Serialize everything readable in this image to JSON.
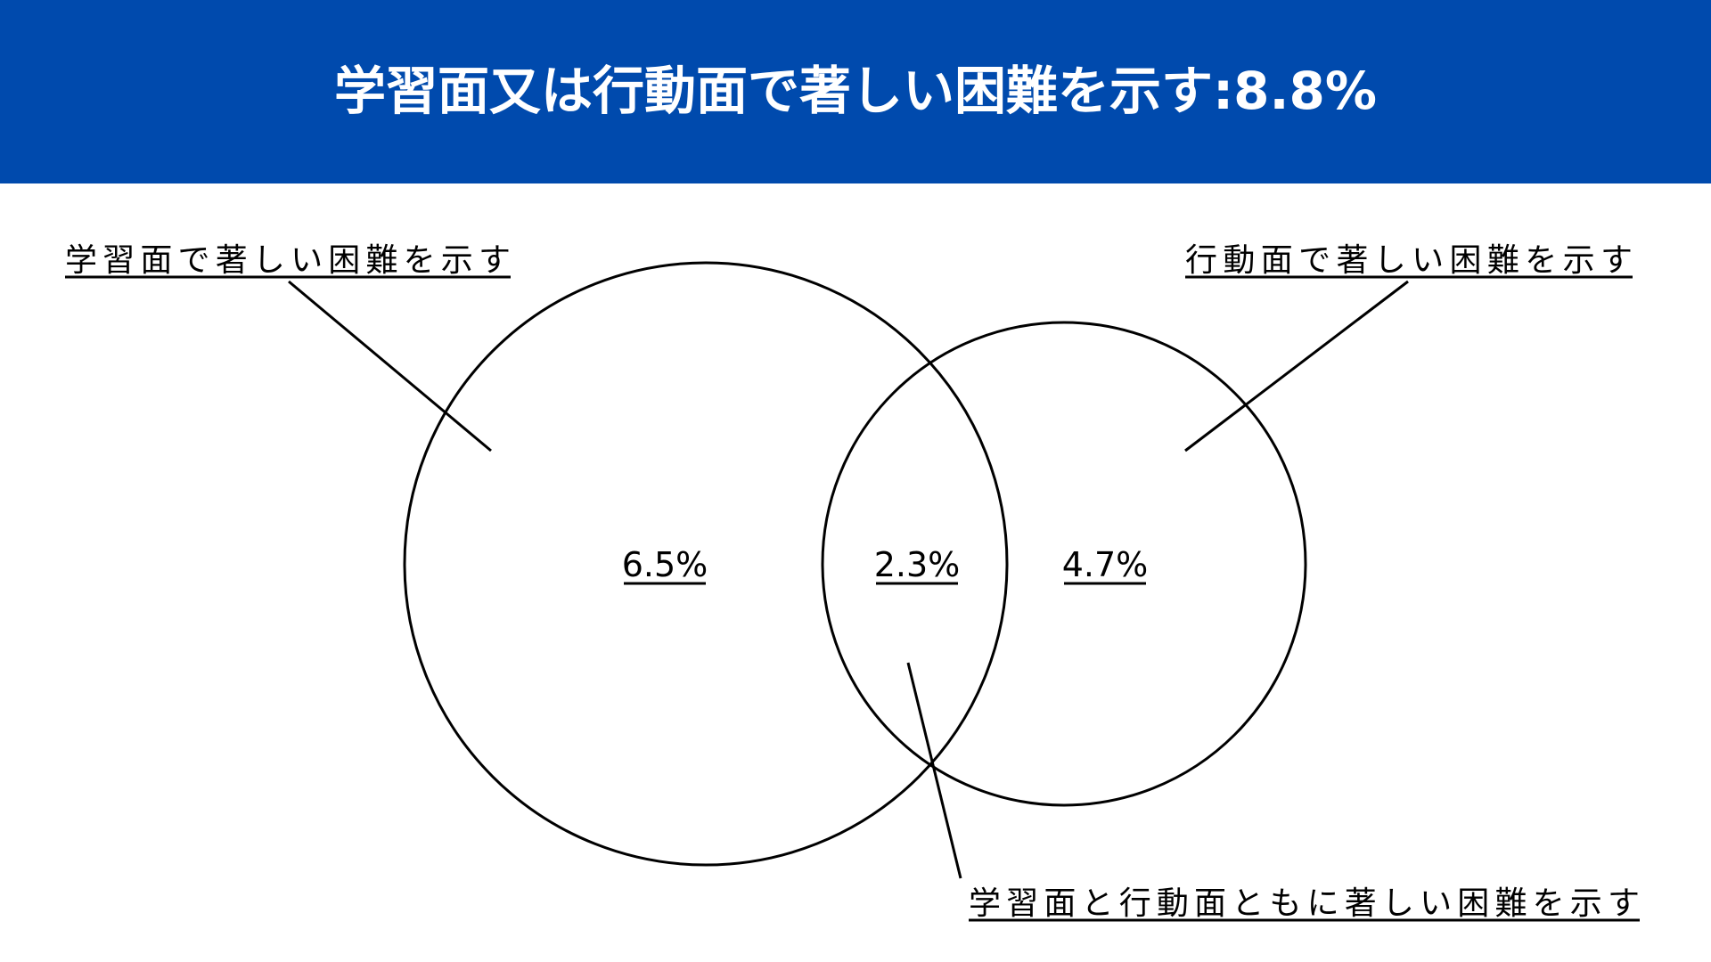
{
  "header": {
    "title": "学習面又は行動面で著しい困難を示す:8.8%"
  },
  "sets": [
    {
      "label": "学習面で著しい困難を示す",
      "value": "6.5%"
    },
    {
      "label": "行動面で著しい困難を示す",
      "value": "4.7%"
    }
  ],
  "overlap": {
    "label": "学習面と行動面ともに著しい困難を示す",
    "value": "2.3%"
  }
}
